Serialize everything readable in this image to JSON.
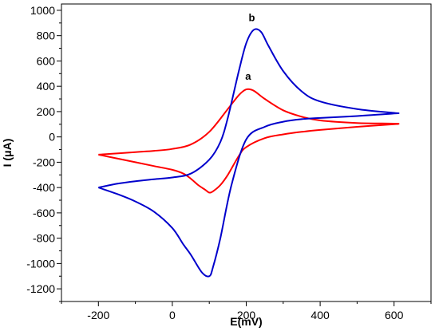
{
  "chart_data": {
    "type": "line",
    "xlabel": "E(mV)",
    "ylabel": "I (μA)",
    "xlim": [
      -300,
      700
    ],
    "ylim": [
      -1300,
      1050
    ],
    "x_ticks": [
      -200,
      0,
      200,
      400,
      600
    ],
    "y_ticks": [
      -1200,
      -1000,
      -800,
      -600,
      -400,
      -200,
      0,
      200,
      400,
      600,
      800,
      1000
    ],
    "grid": false,
    "colors": {
      "a": "#ff0000",
      "b": "#0000cc"
    },
    "series": [
      {
        "name": "a",
        "color": "#ff0000",
        "x": [
          -200,
          -100,
          -50,
          0,
          50,
          100,
          150,
          180,
          200,
          220,
          250,
          300,
          350,
          400,
          500,
          600,
          600,
          500,
          400,
          350,
          300,
          250,
          200,
          180,
          150,
          130,
          110,
          100,
          90,
          70,
          50,
          30,
          0,
          -50,
          -100,
          -150,
          -200
        ],
        "y": [
          -140,
          -120,
          -110,
          -95,
          -60,
          40,
          220,
          330,
          375,
          365,
          300,
          210,
          160,
          130,
          110,
          105,
          100,
          80,
          55,
          40,
          20,
          -10,
          -80,
          -150,
          -300,
          -380,
          -430,
          -440,
          -420,
          -380,
          -330,
          -290,
          -260,
          -230,
          -200,
          -170,
          -140
        ]
      },
      {
        "name": "b",
        "color": "#0000cc",
        "x": [
          -200,
          -150,
          -100,
          -50,
          0,
          50,
          100,
          130,
          150,
          180,
          200,
          220,
          240,
          260,
          300,
          350,
          400,
          500,
          600,
          600,
          500,
          400,
          350,
          300,
          250,
          200,
          160,
          130,
          110,
          100,
          80,
          50,
          30,
          0,
          -50,
          -100,
          -150,
          -200
        ],
        "y": [
          -400,
          -370,
          -350,
          -335,
          -320,
          -290,
          -180,
          -40,
          150,
          520,
          740,
          845,
          830,
          720,
          520,
          360,
          280,
          220,
          190,
          185,
          165,
          150,
          140,
          120,
          80,
          -20,
          -380,
          -800,
          -1030,
          -1100,
          -1070,
          -930,
          -850,
          -720,
          -590,
          -510,
          -450,
          -400
        ]
      }
    ],
    "annotations": [
      {
        "text": "a",
        "x": 205,
        "y": 450
      },
      {
        "text": "b",
        "x": 215,
        "y": 915
      }
    ]
  }
}
